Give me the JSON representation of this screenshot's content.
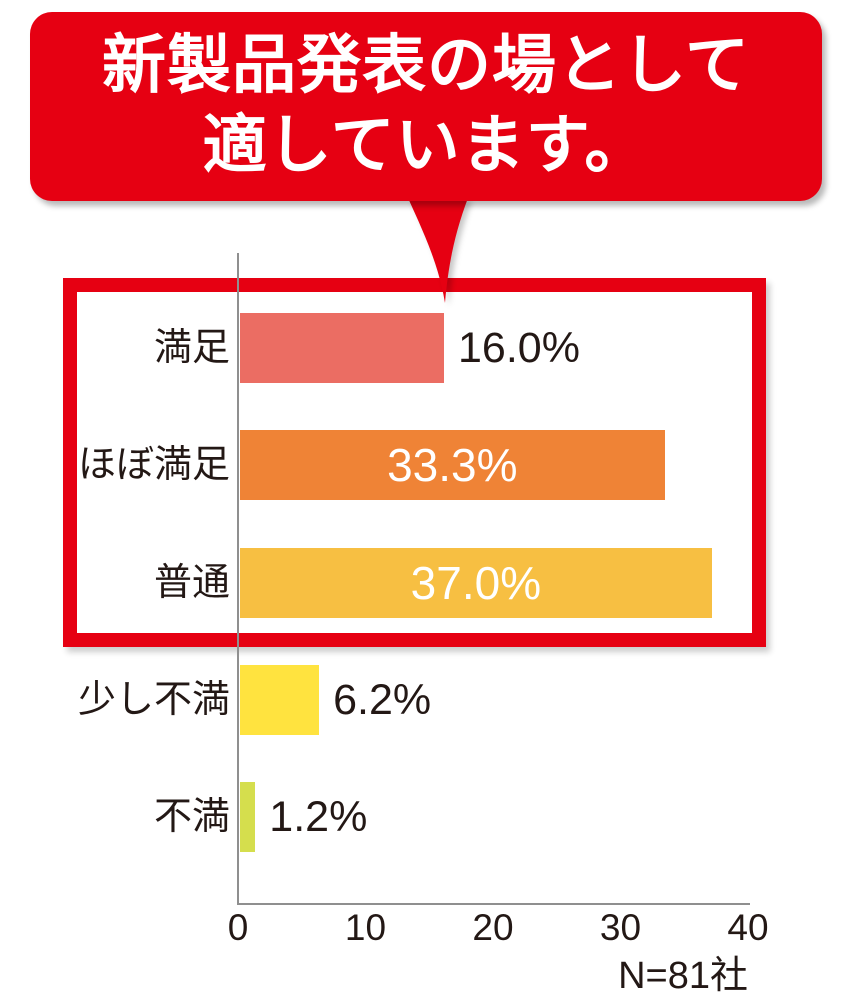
{
  "callout": {
    "text_line1": "新製品発表の場として",
    "text_line2": "適しています。",
    "bg_color": "#e60012",
    "text_color": "#ffffff"
  },
  "chart_data": {
    "type": "bar",
    "orientation": "horizontal",
    "title": "新製品発表の場として適しています。",
    "categories": [
      "満足",
      "ほぼ満足",
      "普通",
      "少し不満",
      "不満"
    ],
    "values": [
      16.0,
      33.3,
      37.0,
      6.2,
      1.2
    ],
    "value_labels": [
      "16.0%",
      "33.3%",
      "37.0%",
      "6.2%",
      "1.2%"
    ],
    "bar_colors": [
      "#eb6d63",
      "#ef8336",
      "#f7bf42",
      "#ffe33f",
      "#d5de4d"
    ],
    "value_label_inside": [
      false,
      true,
      true,
      false,
      false
    ],
    "x_ticks": [
      "0",
      "10",
      "20",
      "30",
      "40"
    ],
    "xlim": [
      0,
      40
    ],
    "grid": false,
    "legend": false,
    "sample_note": "N=81社",
    "highlighted_categories": [
      "満足",
      "ほぼ満足",
      "普通"
    ],
    "highlight_color": "#e60012",
    "axis_color": "#8f8f8f",
    "label_color": "#231815",
    "inside_label_color": "#ffffff"
  }
}
